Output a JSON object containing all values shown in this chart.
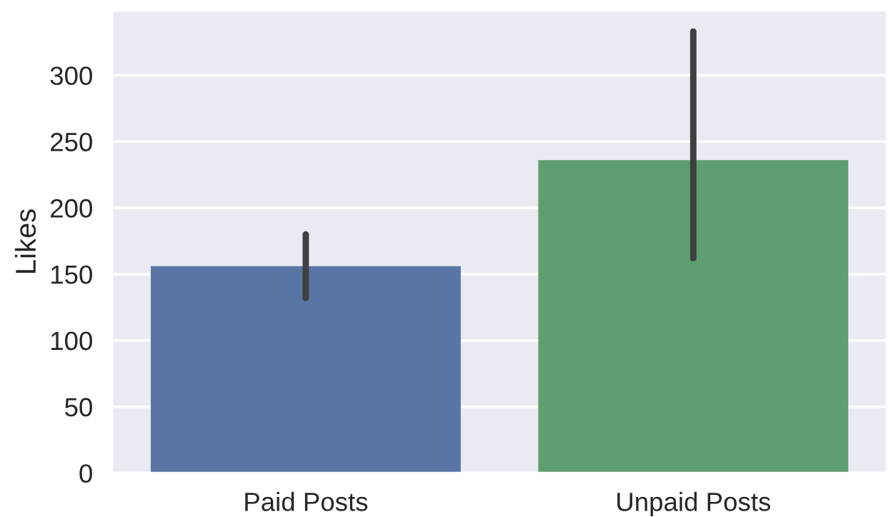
{
  "chart_data": {
    "type": "bar",
    "ylabel": "Likes",
    "categories": [
      "Paid Posts",
      "Unpaid Posts"
    ],
    "values": [
      156,
      236
    ],
    "colors": [
      "#5875a4",
      "#5f9e6e"
    ],
    "errors": [
      [
        132,
        180
      ],
      [
        162,
        333
      ]
    ],
    "ylim": [
      0,
      349
    ],
    "yticks": [
      0,
      50,
      100,
      150,
      200,
      250,
      300
    ],
    "grid": "y"
  }
}
